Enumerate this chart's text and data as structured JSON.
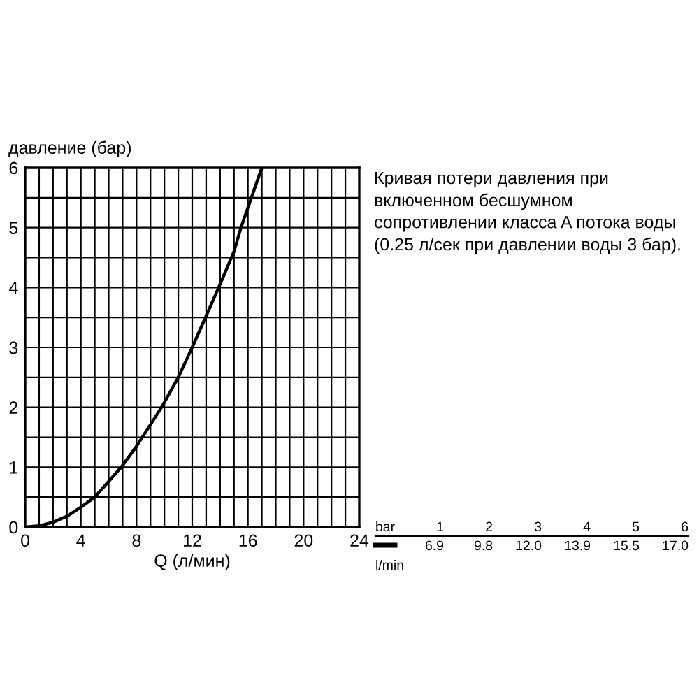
{
  "chart_data": {
    "type": "line",
    "xlabel": "Q (л/мин)",
    "ylabel": "давление (бар)",
    "x": [
      0,
      1,
      2,
      3,
      4,
      5,
      6.9,
      8,
      9.8,
      11,
      12,
      13.9,
      15,
      15.5,
      17
    ],
    "series": [
      {
        "color": "#000000",
        "values": [
          0,
          0.02,
          0.08,
          0.18,
          0.33,
          0.5,
          1,
          1.35,
          2,
          2.5,
          3,
          4,
          4.6,
          5,
          6
        ]
      }
    ],
    "xlim": [
      0,
      24
    ],
    "ylim": [
      0,
      6
    ],
    "xticks": [
      0,
      {
        "value": 1,
        "label": null
      },
      {
        "value": 2,
        "label": null
      },
      {
        "value": 3,
        "label": null
      },
      4,
      {
        "value": 5,
        "label": null
      },
      {
        "value": 6,
        "label": null
      },
      {
        "value": 7,
        "label": null
      },
      8,
      {
        "value": 9,
        "label": null
      },
      {
        "value": 10,
        "label": null
      },
      {
        "value": 11,
        "label": null
      },
      12,
      {
        "value": 13,
        "label": null
      },
      {
        "value": 14,
        "label": null
      },
      {
        "value": 15,
        "label": null
      },
      16,
      {
        "value": 17,
        "label": null
      },
      {
        "value": 18,
        "label": null
      },
      {
        "value": 19,
        "label": null
      },
      20,
      {
        "value": 21,
        "label": null
      },
      {
        "value": 22,
        "label": null
      },
      {
        "value": 23,
        "label": null
      },
      24
    ],
    "yticks": [
      0,
      {
        "value": 0.5,
        "label": null
      },
      1,
      {
        "value": 1.5,
        "label": null
      },
      2,
      {
        "value": 2.5,
        "label": null
      },
      3,
      {
        "value": 3.5,
        "label": null
      },
      4,
      {
        "value": 4.5,
        "label": null
      },
      5,
      {
        "value": 5.5,
        "label": null
      },
      6
    ],
    "grid": true,
    "marker": "none",
    "line_style": "solid",
    "legend": false,
    "annotations": [
      "Кривая потери давления при включенном бесшумном сопротивлении класса A потока воды (0.25 л/сек при давлении воды 3 бар).",
      "bar",
      "l/min",
      "1",
      "2",
      "3",
      "4",
      "5",
      "6",
      "6.9",
      "9.8",
      "12.0",
      "13.9",
      "15.5",
      "17.0"
    ]
  }
}
